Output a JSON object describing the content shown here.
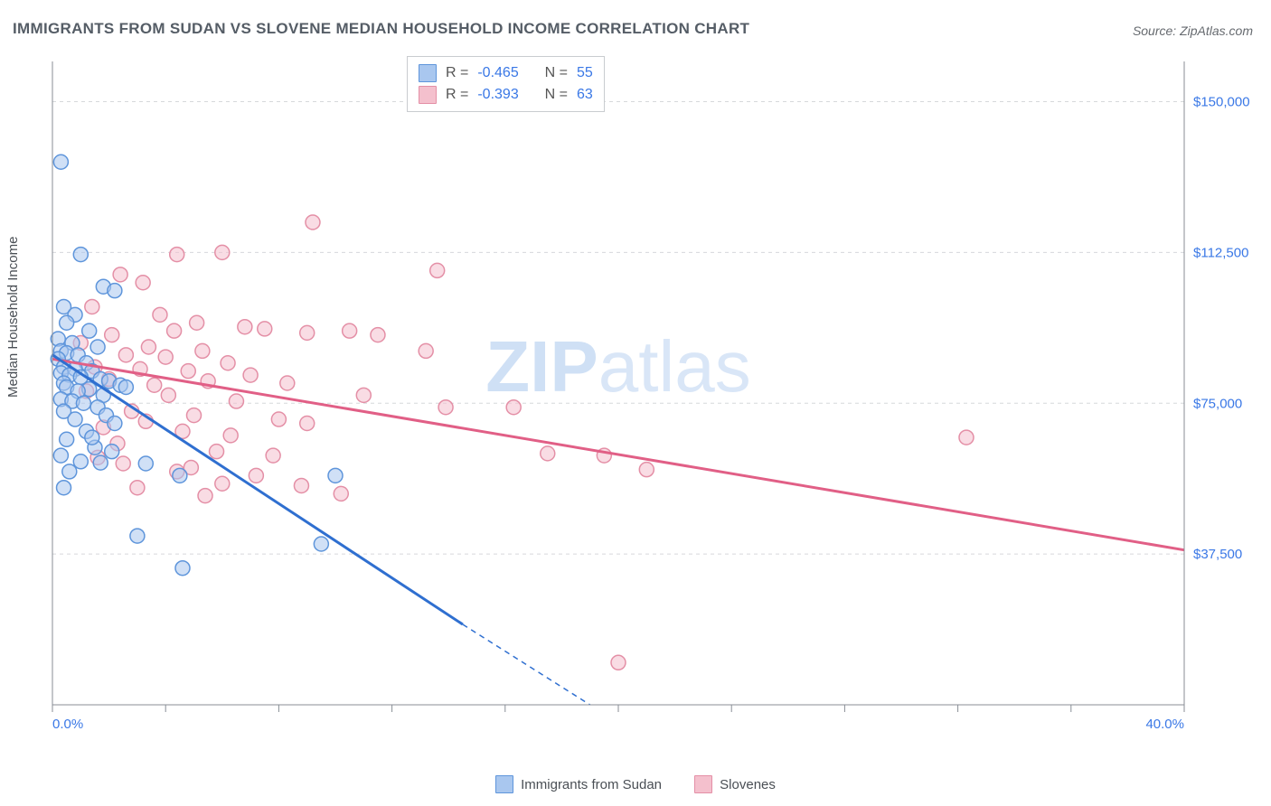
{
  "title": "IMMIGRANTS FROM SUDAN VS SLOVENE MEDIAN HOUSEHOLD INCOME CORRELATION CHART",
  "source_label": "Source:",
  "source_name": "ZipAtlas.com",
  "ylabel": "Median Household Income",
  "watermark_bold": "ZIP",
  "watermark_light": "atlas",
  "chart": {
    "type": "scatter",
    "xlim": [
      0,
      40
    ],
    "ylim": [
      0,
      160000
    ],
    "xtick_labels": {
      "min": "0.0%",
      "max": "40.0%"
    },
    "xtick_positions": [
      0,
      4,
      8,
      12,
      16,
      20,
      24,
      28,
      32,
      36,
      40
    ],
    "ytick_positions": [
      37500,
      75000,
      112500,
      150000
    ],
    "ytick_labels": [
      "$37,500",
      "$75,000",
      "$112,500",
      "$150,000"
    ],
    "background_color": "#ffffff",
    "grid_color": "#d6d8db",
    "axis_color": "#888e96",
    "label_color": "#4a4f55",
    "value_color": "#3a78e6"
  },
  "series": [
    {
      "name": "Immigrants from Sudan",
      "legend_label": "Immigrants from Sudan",
      "color_fill": "#a9c7ef",
      "color_stroke": "#5e95db",
      "line_color": "#2f6fd0",
      "marker_radius": 8,
      "fill_opacity": 0.55,
      "R_label": "R =",
      "R": "-0.465",
      "N_label": "N =",
      "N": "55",
      "trend": {
        "x1": 0,
        "y1": 87000,
        "x2": 14.5,
        "y2": 20000
      },
      "trend_dash": {
        "x1": 14.5,
        "y1": 20000,
        "x2": 19,
        "y2": 0
      },
      "points": [
        [
          0.3,
          135000
        ],
        [
          1.0,
          112000
        ],
        [
          1.8,
          104000
        ],
        [
          2.2,
          103000
        ],
        [
          0.4,
          99000
        ],
        [
          0.8,
          97000
        ],
        [
          0.5,
          95000
        ],
        [
          1.3,
          93000
        ],
        [
          0.2,
          91000
        ],
        [
          0.7,
          90000
        ],
        [
          1.6,
          89000
        ],
        [
          0.3,
          88000
        ],
        [
          0.5,
          87500
        ],
        [
          0.9,
          87000
        ],
        [
          0.2,
          86000
        ],
        [
          1.2,
          85000
        ],
        [
          0.4,
          84000
        ],
        [
          0.8,
          83500
        ],
        [
          1.4,
          83000
        ],
        [
          0.3,
          82500
        ],
        [
          0.6,
          82000
        ],
        [
          1.0,
          81500
        ],
        [
          1.7,
          81000
        ],
        [
          0.4,
          80000
        ],
        [
          2.0,
          80500
        ],
        [
          0.5,
          79000
        ],
        [
          1.3,
          78500
        ],
        [
          0.9,
          78000
        ],
        [
          2.4,
          79500
        ],
        [
          1.8,
          77000
        ],
        [
          0.3,
          76000
        ],
        [
          0.7,
          75500
        ],
        [
          1.1,
          75000
        ],
        [
          1.6,
          74000
        ],
        [
          2.6,
          79000
        ],
        [
          0.4,
          73000
        ],
        [
          1.9,
          72000
        ],
        [
          0.8,
          71000
        ],
        [
          2.2,
          70000
        ],
        [
          1.2,
          68000
        ],
        [
          0.5,
          66000
        ],
        [
          1.5,
          64000
        ],
        [
          0.3,
          62000
        ],
        [
          1.0,
          60500
        ],
        [
          1.7,
          60200
        ],
        [
          0.6,
          58000
        ],
        [
          3.3,
          60000
        ],
        [
          4.5,
          57000
        ],
        [
          10.0,
          57000
        ],
        [
          0.4,
          54000
        ],
        [
          3.0,
          42000
        ],
        [
          4.6,
          34000
        ],
        [
          9.5,
          40000
        ],
        [
          2.1,
          63000
        ],
        [
          1.4,
          66500
        ]
      ]
    },
    {
      "name": "Slovenes",
      "legend_label": "Slovenes",
      "color_fill": "#f4c0cd",
      "color_stroke": "#e48fa6",
      "line_color": "#e15f86",
      "marker_radius": 8,
      "fill_opacity": 0.55,
      "R_label": "R =",
      "R": "-0.393",
      "N_label": "N =",
      "N": "63",
      "trend": {
        "x1": 0,
        "y1": 86000,
        "x2": 40,
        "y2": 38500
      },
      "points": [
        [
          9.2,
          120000
        ],
        [
          4.4,
          112000
        ],
        [
          6.0,
          112500
        ],
        [
          2.4,
          107000
        ],
        [
          3.2,
          105000
        ],
        [
          1.4,
          99000
        ],
        [
          3.8,
          97000
        ],
        [
          5.1,
          95000
        ],
        [
          6.8,
          94000
        ],
        [
          4.3,
          93000
        ],
        [
          2.1,
          92000
        ],
        [
          7.5,
          93500
        ],
        [
          9.0,
          92500
        ],
        [
          10.5,
          93000
        ],
        [
          11.5,
          92000
        ],
        [
          1.0,
          90000
        ],
        [
          3.4,
          89000
        ],
        [
          5.3,
          88000
        ],
        [
          2.6,
          87000
        ],
        [
          4.0,
          86500
        ],
        [
          6.2,
          85000
        ],
        [
          1.5,
          84000
        ],
        [
          3.1,
          83500
        ],
        [
          4.8,
          83000
        ],
        [
          7.0,
          82000
        ],
        [
          2.0,
          81000
        ],
        [
          5.5,
          80500
        ],
        [
          8.3,
          80000
        ],
        [
          3.6,
          79500
        ],
        [
          1.2,
          78000
        ],
        [
          4.1,
          77000
        ],
        [
          6.5,
          75500
        ],
        [
          2.8,
          73000
        ],
        [
          5.0,
          72000
        ],
        [
          8.0,
          71000
        ],
        [
          3.3,
          70500
        ],
        [
          1.8,
          69000
        ],
        [
          4.6,
          68000
        ],
        [
          6.3,
          67000
        ],
        [
          2.3,
          65000
        ],
        [
          5.8,
          63000
        ],
        [
          7.8,
          62000
        ],
        [
          4.4,
          58000
        ],
        [
          6.0,
          55000
        ],
        [
          9.0,
          70000
        ],
        [
          13.6,
          108000
        ],
        [
          13.2,
          88000
        ],
        [
          13.9,
          74000
        ],
        [
          16.3,
          74000
        ],
        [
          17.5,
          62500
        ],
        [
          19.5,
          62000
        ],
        [
          21.0,
          58500
        ],
        [
          32.3,
          66500
        ],
        [
          20.0,
          10500
        ],
        [
          3.0,
          54000
        ],
        [
          5.4,
          52000
        ],
        [
          1.6,
          61500
        ],
        [
          2.5,
          60000
        ],
        [
          4.9,
          59000
        ],
        [
          7.2,
          57000
        ],
        [
          8.8,
          54500
        ],
        [
          10.2,
          52500
        ],
        [
          11.0,
          77000
        ]
      ]
    }
  ]
}
